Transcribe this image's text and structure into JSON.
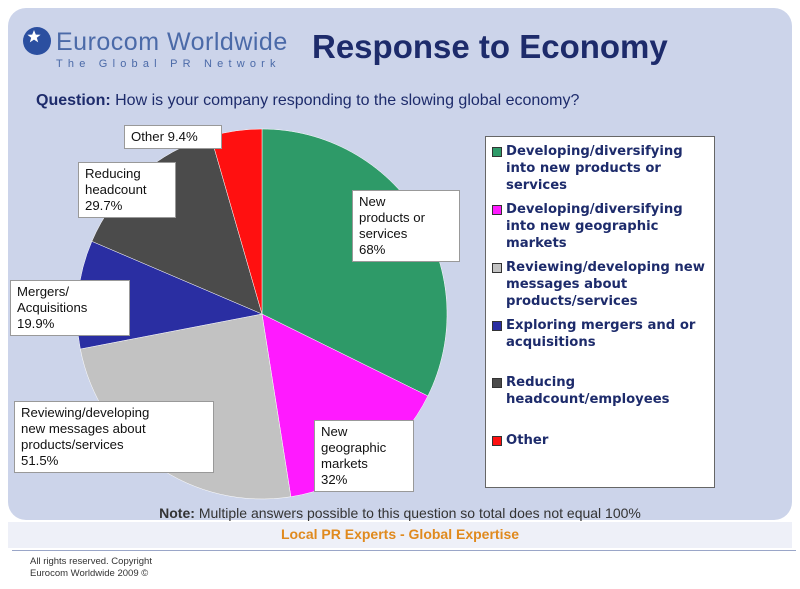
{
  "brand": {
    "name": "Eurocom Worldwide",
    "tagline": "The Global PR Network"
  },
  "title": "Response to Economy",
  "question": {
    "label": "Question:",
    "text": "How is your company responding to the slowing global economy?"
  },
  "legend": [
    {
      "label": "Developing/diversifying into new products or services",
      "color": "#2e9a68"
    },
    {
      "label": "Developing/diversifying into new geographic markets",
      "color": "#ff1aff"
    },
    {
      "label": "Reviewing/developing new messages about products/services",
      "color": "#c2c2c2"
    },
    {
      "label": "Exploring mergers and or acquisitions",
      "color": "#2a2ea2"
    },
    {
      "label": "Reducing headcount/employees",
      "color": "#4b4b4b"
    },
    {
      "label": "Other",
      "color": "#ff1010"
    }
  ],
  "callouts": [
    {
      "lines": [
        "New",
        "products or",
        "services",
        "68%"
      ]
    },
    {
      "lines": [
        "New",
        "geographic",
        "markets",
        "32%"
      ]
    },
    {
      "lines": [
        "Reviewing/developing",
        "new messages about",
        "products/services",
        "51.5%"
      ]
    },
    {
      "lines": [
        "Mergers/",
        "Acquisitions",
        "19.9%"
      ]
    },
    {
      "lines": [
        "Reducing",
        "headcount",
        "29.7%"
      ]
    },
    {
      "lines": [
        "Other 9.4%"
      ]
    }
  ],
  "note": {
    "label": "Note:",
    "text": "Multiple answers possible to this question so total does not equal 100%"
  },
  "slogan": "Local PR Experts - Global Expertise",
  "footer": {
    "line1": "All rights reserved. Copyright",
    "line2": "Eurocom Worldwide 2009 ©"
  },
  "chart_data": {
    "type": "pie",
    "categories": [
      "New products or services",
      "New geographic markets",
      "Reviewing/developing new messages about products/services",
      "Mergers/Acquisitions",
      "Reducing headcount",
      "Other"
    ],
    "values": [
      68,
      32,
      51.5,
      19.9,
      29.7,
      9.4
    ],
    "colors": [
      "#2e9a68",
      "#ff1aff",
      "#c2c2c2",
      "#2a2ea2",
      "#4b4b4b",
      "#ff1010"
    ],
    "legend_position": "right"
  }
}
